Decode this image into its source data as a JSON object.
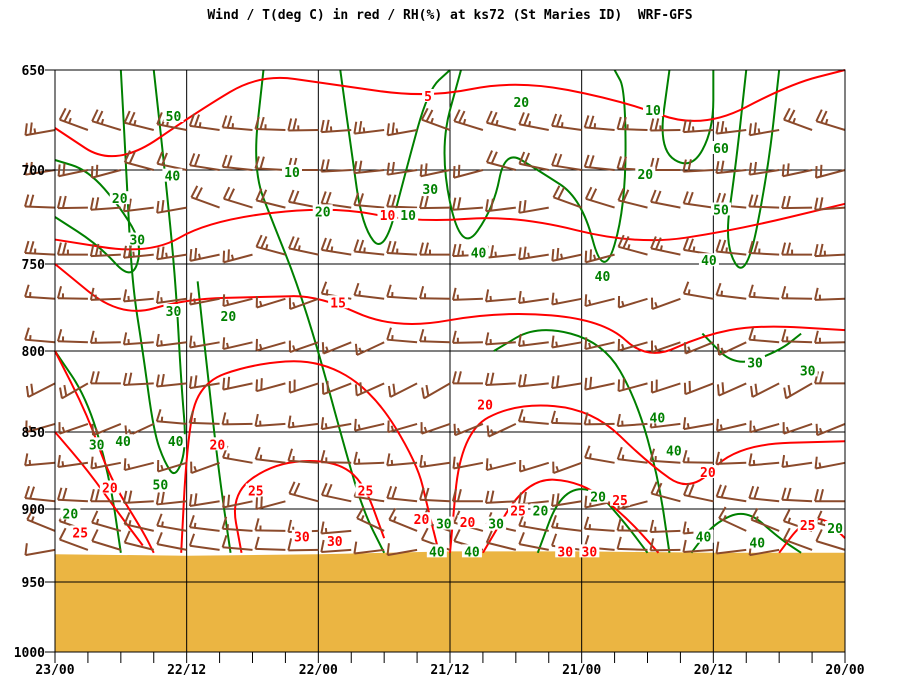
{
  "chart_data": {
    "type": "line",
    "title": "Wind / T(deg C) in red / RH(%) at ks72 (St Maries ID)  WRF-GFS",
    "x_unit": "hours from 23/00 (time runs right-to-left to 20/00)",
    "xlim": [
      0,
      72
    ],
    "x_ticks": [
      {
        "h": 0,
        "label": "23/00"
      },
      {
        "h": 12,
        "label": "22/12"
      },
      {
        "h": 24,
        "label": "22/00"
      },
      {
        "h": 36,
        "label": "21/12"
      },
      {
        "h": 48,
        "label": "21/00"
      },
      {
        "h": 60,
        "label": "20/12"
      },
      {
        "h": 72,
        "label": "20/00"
      }
    ],
    "y_unit": "pressure (hPa)",
    "ylim": [
      650,
      1000
    ],
    "y_ticks": [
      650,
      700,
      750,
      800,
      850,
      900,
      950,
      1000
    ],
    "grid": true,
    "colors": {
      "temperature": "#ff0000",
      "rh": "#008000",
      "wind": "#8b4a2b",
      "terrain": "#ebb542",
      "grid": "#000000"
    },
    "surface_pressure": [
      [
        0,
        931
      ],
      [
        12,
        932
      ],
      [
        24,
        931
      ],
      [
        36,
        929
      ],
      [
        48,
        929
      ],
      [
        60,
        930
      ],
      [
        72,
        930
      ]
    ],
    "temperature_lines": [
      {
        "value": 5,
        "points": [
          [
            0,
            679
          ],
          [
            5.5,
            699
          ],
          [
            13.2,
            670
          ],
          [
            18.7,
            652
          ],
          [
            25,
            657
          ],
          [
            34,
            664
          ],
          [
            42,
            655
          ],
          [
            51.5,
            665
          ],
          [
            59,
            680
          ],
          [
            67,
            657
          ],
          [
            72,
            650
          ]
        ]
      },
      {
        "value": 10,
        "points": [
          [
            0,
            737
          ],
          [
            8.7,
            745
          ],
          [
            14,
            727
          ],
          [
            25,
            719
          ],
          [
            33,
            728
          ],
          [
            42,
            724
          ],
          [
            53,
            740
          ],
          [
            62,
            732
          ],
          [
            72,
            718
          ]
        ]
      },
      {
        "value": 15,
        "points": [
          [
            0,
            750
          ],
          [
            6,
            781
          ],
          [
            12,
            770
          ],
          [
            19,
            769
          ],
          [
            24,
            768
          ],
          [
            31,
            788
          ],
          [
            40.5,
            777
          ],
          [
            50,
            782
          ],
          [
            54,
            806
          ],
          [
            59,
            791
          ],
          [
            64,
            785
          ],
          [
            72,
            788
          ]
        ]
      },
      {
        "value": 20,
        "points": [
          [
            0,
            800
          ],
          [
            3,
            840
          ],
          [
            5,
            880
          ],
          [
            8,
            915
          ],
          [
            9,
            930
          ]
        ]
      },
      {
        "value": 20,
        "points": [
          [
            11.5,
            930
          ],
          [
            12,
            860
          ],
          [
            13,
            820
          ],
          [
            18,
            808
          ],
          [
            24,
            805
          ],
          [
            29,
            825
          ],
          [
            33,
            870
          ],
          [
            34,
            900
          ],
          [
            35,
            930
          ]
        ]
      },
      {
        "value": 20,
        "points": [
          [
            36,
            930
          ],
          [
            37,
            850
          ],
          [
            42,
            832
          ],
          [
            49,
            836
          ],
          [
            54,
            870
          ],
          [
            58,
            890
          ],
          [
            62,
            858
          ],
          [
            72,
            856
          ]
        ]
      },
      {
        "value": 25,
        "points": [
          [
            17,
            930
          ],
          [
            16,
            890
          ],
          [
            20,
            870
          ],
          [
            25,
            868
          ],
          [
            28,
            880
          ],
          [
            30,
            920
          ]
        ]
      },
      {
        "value": 25,
        "points": [
          [
            39,
            930
          ],
          [
            43,
            880
          ],
          [
            48,
            882
          ],
          [
            52,
            905
          ],
          [
            55,
            930
          ]
        ]
      },
      {
        "value": 25,
        "points": [
          [
            66,
            930
          ],
          [
            68,
            910
          ],
          [
            70,
            905
          ],
          [
            72,
            920
          ]
        ]
      },
      {
        "value": 25,
        "points": [
          [
            0,
            850
          ],
          [
            3,
            875
          ],
          [
            6,
            905
          ],
          [
            8,
            925
          ]
        ]
      }
    ],
    "rh_lines": [
      {
        "value": 50,
        "points": [
          [
            6,
            650
          ],
          [
            6.5,
            700
          ],
          [
            7,
            760
          ],
          [
            8,
            800
          ],
          [
            9,
            850
          ],
          [
            10,
            870
          ],
          [
            11,
            880
          ],
          [
            12,
            860
          ],
          [
            11.5,
            820
          ],
          [
            11,
            760
          ],
          [
            10,
            700
          ],
          [
            9,
            650
          ]
        ]
      },
      {
        "value": 10,
        "points": [
          [
            19,
            650
          ],
          [
            18,
            700
          ],
          [
            20,
            730
          ],
          [
            22,
            760
          ],
          [
            24,
            800
          ],
          [
            26,
            850
          ],
          [
            28,
            900
          ],
          [
            30,
            930
          ]
        ]
      },
      {
        "value": 30,
        "points": [
          [
            26,
            650
          ],
          [
            27,
            690
          ],
          [
            28,
            730
          ],
          [
            30,
            745
          ],
          [
            32,
            700
          ],
          [
            34,
            660
          ],
          [
            36,
            650
          ]
        ]
      },
      {
        "value": 40,
        "points": [
          [
            37,
            650
          ],
          [
            35,
            690
          ],
          [
            37,
            745
          ],
          [
            40,
            720
          ],
          [
            41,
            690
          ],
          [
            44,
            700
          ],
          [
            48,
            715
          ],
          [
            50,
            760
          ],
          [
            52,
            720
          ],
          [
            52,
            660
          ],
          [
            51,
            650
          ]
        ]
      },
      {
        "value": 10,
        "points": [
          [
            56,
            650
          ],
          [
            55,
            690
          ],
          [
            58,
            700
          ],
          [
            60,
            680
          ],
          [
            60,
            650
          ]
        ]
      },
      {
        "value": 60,
        "points": [
          [
            63,
            650
          ],
          [
            62,
            700
          ],
          [
            61,
            740
          ],
          [
            63,
            760
          ],
          [
            65,
            700
          ],
          [
            66,
            650
          ]
        ]
      },
      {
        "value": 40,
        "points": [
          [
            40,
            800
          ],
          [
            44,
            785
          ],
          [
            50,
            795
          ],
          [
            53,
            830
          ],
          [
            55,
            880
          ],
          [
            56,
            930
          ]
        ]
      },
      {
        "value": 20,
        "points": [
          [
            0,
            725
          ],
          [
            4,
            740
          ],
          [
            7,
            760
          ],
          [
            8,
            740
          ],
          [
            6,
            720
          ],
          [
            3,
            700
          ],
          [
            0,
            695
          ]
        ]
      },
      {
        "value": 30,
        "points": [
          [
            0,
            800
          ],
          [
            3,
            830
          ],
          [
            5,
            880
          ],
          [
            6,
            930
          ]
        ]
      },
      {
        "value": 30,
        "points": [
          [
            59,
            790
          ],
          [
            62,
            810
          ],
          [
            66,
            800
          ],
          [
            68,
            790
          ]
        ]
      },
      {
        "value": 20,
        "points": [
          [
            13,
            760
          ],
          [
            14,
            820
          ],
          [
            15,
            880
          ],
          [
            16,
            930
          ]
        ]
      },
      {
        "value": 40,
        "points": [
          [
            44,
            930
          ],
          [
            46,
            890
          ],
          [
            49,
            885
          ],
          [
            52,
            910
          ],
          [
            54,
            930
          ]
        ]
      },
      {
        "value": 40,
        "points": [
          [
            58,
            930
          ],
          [
            60,
            910
          ],
          [
            63,
            900
          ],
          [
            66,
            920
          ],
          [
            68,
            930
          ]
        ]
      }
    ],
    "temperature_labels": [
      {
        "value": "5",
        "h": 34.0,
        "p": 663
      },
      {
        "value": "10",
        "h": 30.3,
        "p": 724
      },
      {
        "value": "15",
        "h": 25.8,
        "p": 772
      },
      {
        "value": "20",
        "h": 39.2,
        "p": 833
      },
      {
        "value": "20",
        "h": 5.0,
        "p": 886
      },
      {
        "value": "20",
        "h": 14.8,
        "p": 858
      },
      {
        "value": "20",
        "h": 59.5,
        "p": 876
      },
      {
        "value": "25",
        "h": 18.3,
        "p": 888
      },
      {
        "value": "25",
        "h": 28.3,
        "p": 888
      },
      {
        "value": "25",
        "h": 51.5,
        "p": 894
      },
      {
        "value": "25",
        "h": 68.6,
        "p": 911
      },
      {
        "value": "25",
        "h": 2.3,
        "p": 916
      },
      {
        "value": "20",
        "h": 33.4,
        "p": 907
      },
      {
        "value": "20",
        "h": 37.6,
        "p": 909
      },
      {
        "value": "25",
        "h": 42.2,
        "p": 901
      },
      {
        "value": "30",
        "h": 22.5,
        "p": 919
      },
      {
        "value": "30",
        "h": 25.5,
        "p": 922
      },
      {
        "value": "30",
        "h": 46.5,
        "p": 929
      },
      {
        "value": "30",
        "h": 48.7,
        "p": 929
      }
    ],
    "rh_labels": [
      {
        "value": "50",
        "h": 10.8,
        "p": 673
      },
      {
        "value": "40",
        "h": 10.7,
        "p": 703
      },
      {
        "value": "20",
        "h": 5.9,
        "p": 715
      },
      {
        "value": "30",
        "h": 7.5,
        "p": 737
      },
      {
        "value": "10",
        "h": 21.6,
        "p": 701
      },
      {
        "value": "20",
        "h": 24.4,
        "p": 722
      },
      {
        "value": "10",
        "h": 28.9,
        "p": 724
      },
      {
        "value": "30",
        "h": 34.2,
        "p": 710
      },
      {
        "value": "40",
        "h": 38.6,
        "p": 744
      },
      {
        "value": "20",
        "h": 42.5,
        "p": 666
      },
      {
        "value": "10",
        "h": 54.5,
        "p": 670
      },
      {
        "value": "60",
        "h": 60.7,
        "p": 689
      },
      {
        "value": "20",
        "h": 53.8,
        "p": 702
      },
      {
        "value": "50",
        "h": 60.7,
        "p": 721
      },
      {
        "value": "40",
        "h": 59.6,
        "p": 748
      },
      {
        "value": "40",
        "h": 49.9,
        "p": 757
      },
      {
        "value": "30",
        "h": 10.8,
        "p": 777
      },
      {
        "value": "20",
        "h": 15.8,
        "p": 780
      },
      {
        "value": "30",
        "h": 63.8,
        "p": 807
      },
      {
        "value": "30",
        "h": 68.6,
        "p": 812
      },
      {
        "value": "40",
        "h": 54.9,
        "p": 841
      },
      {
        "value": "40",
        "h": 56.4,
        "p": 862
      },
      {
        "value": "30",
        "h": 3.8,
        "p": 858
      },
      {
        "value": "40",
        "h": 6.2,
        "p": 856
      },
      {
        "value": "40",
        "h": 11.0,
        "p": 856
      },
      {
        "value": "50",
        "h": 9.6,
        "p": 884
      },
      {
        "value": "20",
        "h": 1.4,
        "p": 903
      },
      {
        "value": "20",
        "h": 49.5,
        "p": 892
      },
      {
        "value": "30",
        "h": 32.7,
        "p": 910
      },
      {
        "value": "30",
        "h": 40.2,
        "p": 910
      },
      {
        "value": "20",
        "h": 43.7,
        "p": 901
      },
      {
        "value": "40",
        "h": 34.8,
        "p": 929
      },
      {
        "value": "40",
        "h": 38.0,
        "p": 929
      },
      {
        "value": "40",
        "h": 59.1,
        "p": 919
      },
      {
        "value": "40",
        "h": 64.0,
        "p": 923
      },
      {
        "value": "20",
        "h": 71.1,
        "p": 913
      }
    ],
    "wind_levels": [
      {
        "p": 680,
        "dir": 275,
        "kt": 20
      },
      {
        "p": 700,
        "dir": 270,
        "kt": 20
      },
      {
        "p": 720,
        "dir": 275,
        "kt": 20
      },
      {
        "p": 745,
        "dir": 270,
        "kt": 20
      },
      {
        "p": 770,
        "dir": 265,
        "kt": 15
      },
      {
        "p": 795,
        "dir": 260,
        "kt": 15
      },
      {
        "p": 820,
        "dir": 255,
        "kt": 15
      },
      {
        "p": 845,
        "dir": 260,
        "kt": 15
      },
      {
        "p": 870,
        "dir": 265,
        "kt": 15
      },
      {
        "p": 895,
        "dir": 270,
        "kt": 15
      },
      {
        "p": 915,
        "dir": 280,
        "kt": 15
      },
      {
        "p": 928,
        "dir": 275,
        "kt": 10
      }
    ]
  }
}
